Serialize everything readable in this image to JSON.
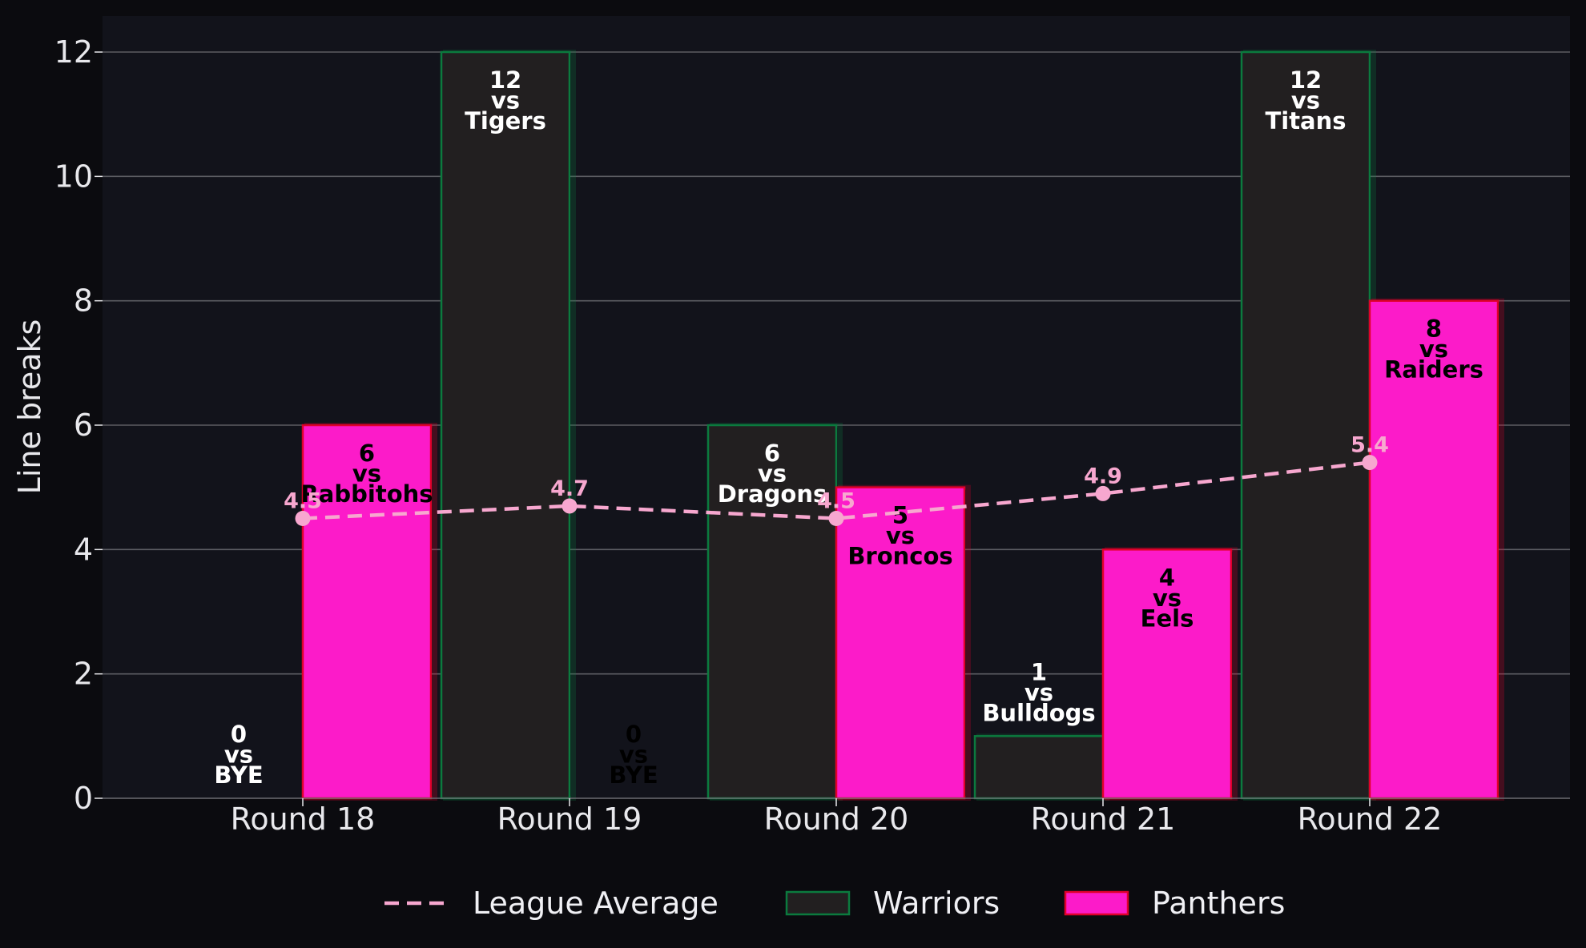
{
  "chart_data": {
    "type": "bar",
    "title": "",
    "xlabel": "",
    "ylabel": "Line breaks",
    "ylim": [
      0,
      12.6
    ],
    "yticks": [
      0,
      2,
      4,
      6,
      8,
      10,
      12
    ],
    "grid": true,
    "legend_position": "bottom-center",
    "categories": [
      "Round 18",
      "Round 19",
      "Round 20",
      "Round 21",
      "Round 22"
    ],
    "series": [
      {
        "name": "Warriors",
        "type": "bar",
        "color": "#221f20",
        "edge_color": "#0b7a3e",
        "label_color": "#ffffff",
        "values": [
          0,
          12,
          6,
          1,
          12
        ],
        "opponents": [
          "BYE",
          "Tigers",
          "Dragons",
          "Bulldogs",
          "Titans"
        ]
      },
      {
        "name": "Panthers",
        "type": "bar",
        "color": "#fc1bc9",
        "edge_color": "#e0002a",
        "label_color": "#000000",
        "values": [
          6,
          0,
          5,
          4,
          8
        ],
        "opponents": [
          "Rabbitohs",
          "BYE",
          "Broncos",
          "Eels",
          "Raiders"
        ]
      },
      {
        "name": "League Average",
        "type": "line",
        "style": "dashed",
        "color": "#f7a7cf",
        "values": [
          4.5,
          4.7,
          4.5,
          4.9,
          5.4
        ],
        "labels": [
          "4.5",
          "4.7",
          "4.5",
          "4.9",
          "5.4"
        ]
      }
    ],
    "vs_word": "vs",
    "legend": [
      "League Average",
      "Warriors",
      "Panthers"
    ]
  }
}
